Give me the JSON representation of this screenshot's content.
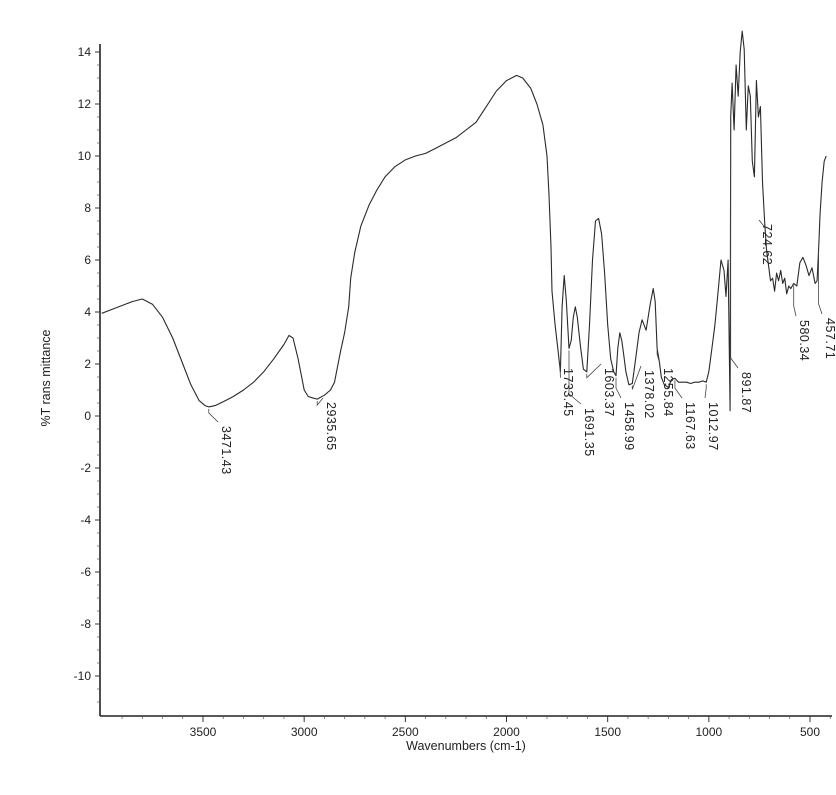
{
  "chart_data": {
    "type": "line",
    "xlabel": "Wavenumbers (cm-1)",
    "ylabel": "%Transmittance",
    "xlim": [
      4000,
      400
    ],
    "ylim": [
      -11.5,
      14.5
    ],
    "x_reversed": true,
    "x_ticks": [
      3500,
      3000,
      2500,
      2000,
      1500,
      1000,
      500
    ],
    "y_ticks": [
      14,
      12,
      10,
      8,
      6,
      4,
      2,
      0,
      -2,
      -4,
      -6,
      -8,
      -10
    ],
    "grid": false,
    "legend": "none",
    "series": [
      {
        "x": [
          4000,
          3950,
          3900,
          3850,
          3800,
          3750,
          3700,
          3650,
          3600,
          3560,
          3520,
          3490,
          3471.43,
          3440,
          3400,
          3350,
          3300,
          3250,
          3200,
          3150,
          3100,
          3075,
          3055,
          3030,
          3000,
          2980,
          2960,
          2935.65,
          2900,
          2870,
          2850,
          2820,
          2800,
          2780,
          2770,
          2750,
          2720,
          2680,
          2640,
          2600,
          2550,
          2500,
          2450,
          2400,
          2350,
          2300,
          2250,
          2200,
          2150,
          2100,
          2050,
          2000,
          1950,
          1920,
          1880,
          1850,
          1820,
          1800,
          1790,
          1780,
          1775,
          1760,
          1745,
          1733.45,
          1725,
          1715,
          1705,
          1691.35,
          1680,
          1670,
          1660,
          1650,
          1635,
          1620,
          1603.37,
          1590,
          1575,
          1560,
          1545,
          1530,
          1515,
          1500,
          1485,
          1470,
          1458.99,
          1450,
          1440,
          1430,
          1420,
          1410,
          1395,
          1378.02,
          1360,
          1345,
          1330,
          1310,
          1290,
          1275,
          1265,
          1255.84,
          1245,
          1235,
          1220,
          1200,
          1185,
          1167.63,
          1150,
          1130,
          1110,
          1090,
          1070,
          1050,
          1030,
          1012.97,
          1000,
          985,
          970,
          955,
          940,
          925,
          915,
          905,
          895,
          891.87,
          885,
          875,
          865,
          855,
          845,
          835,
          825,
          815,
          805,
          795,
          785,
          775,
          765,
          755,
          745,
          735,
          724.62,
          715,
          705,
          695,
          685,
          675,
          665,
          655,
          645,
          635,
          625,
          615,
          605,
          595,
          580.34,
          565,
          550,
          535,
          520,
          505,
          490,
          475,
          465,
          457.71,
          450,
          440,
          430,
          420
        ],
        "y": [
          3.95,
          4.1,
          4.25,
          4.4,
          4.5,
          4.3,
          3.8,
          3.0,
          2.0,
          1.2,
          0.6,
          0.4,
          0.35,
          0.4,
          0.55,
          0.75,
          1.0,
          1.3,
          1.7,
          2.2,
          2.75,
          3.1,
          3.0,
          2.2,
          1.0,
          0.75,
          0.7,
          0.65,
          0.8,
          1.0,
          1.3,
          2.5,
          3.2,
          4.2,
          5.3,
          6.3,
          7.3,
          8.1,
          8.7,
          9.2,
          9.6,
          9.85,
          10.0,
          10.1,
          10.3,
          10.5,
          10.7,
          11.0,
          11.3,
          11.9,
          12.5,
          12.9,
          13.1,
          13.0,
          12.6,
          12.0,
          11.2,
          10.0,
          8.5,
          6.5,
          4.8,
          3.5,
          2.5,
          1.7,
          4.2,
          5.4,
          4.5,
          2.6,
          2.9,
          3.8,
          4.2,
          3.8,
          2.7,
          1.8,
          1.7,
          3.5,
          6.0,
          7.5,
          7.6,
          7.0,
          5.5,
          3.5,
          2.2,
          1.7,
          1.55,
          2.6,
          3.2,
          2.9,
          2.3,
          1.7,
          1.2,
          1.25,
          2.3,
          3.2,
          3.7,
          3.3,
          4.3,
          4.9,
          4.4,
          2.6,
          2.1,
          1.5,
          1.2,
          1.1,
          1.4,
          1.45,
          1.3,
          1.3,
          1.3,
          1.25,
          1.3,
          1.3,
          1.35,
          1.3,
          1.7,
          2.6,
          3.5,
          4.7,
          6.0,
          5.6,
          4.6,
          6.0,
          0.2,
          11.5,
          12.8,
          11.0,
          13.5,
          12.3,
          14.0,
          14.8,
          14.1,
          11.0,
          12.7,
          12.3,
          9.8,
          9.2,
          12.9,
          11.5,
          11.9,
          9.0,
          7.5,
          6.4,
          5.8,
          5.2,
          5.3,
          4.8,
          5.5,
          5.2,
          5.6,
          5.1,
          5.3,
          4.7,
          5.0,
          4.9,
          5.1,
          5.0,
          5.9,
          6.1,
          5.8,
          5.4,
          5.7,
          5.1,
          5.2,
          6.4,
          7.8,
          9.0,
          9.8,
          10.0
        ]
      }
    ],
    "peak_labels": [
      {
        "wavenumber": 3471.43,
        "text": "3471.43"
      },
      {
        "wavenumber": 2935.65,
        "text": "2935.65"
      },
      {
        "wavenumber": 1733.45,
        "text": "1733.45"
      },
      {
        "wavenumber": 1691.35,
        "text": "1691.35"
      },
      {
        "wavenumber": 1603.37,
        "text": "1603.37"
      },
      {
        "wavenumber": 1458.99,
        "text": "1458.99"
      },
      {
        "wavenumber": 1378.02,
        "text": "1378.02"
      },
      {
        "wavenumber": 1255.84,
        "text": "1255.84"
      },
      {
        "wavenumber": 1167.63,
        "text": "1167.63"
      },
      {
        "wavenumber": 1012.97,
        "text": "1012.97"
      },
      {
        "wavenumber": 891.87,
        "text": "891.87"
      },
      {
        "wavenumber": 724.62,
        "text": "724.62"
      },
      {
        "wavenumber": 580.34,
        "text": "580.34"
      },
      {
        "wavenumber": 457.71,
        "text": "457.71"
      }
    ]
  },
  "labels": {
    "ylabel": "%T rans mittance",
    "xlabel": "Wavenumbers (cm-1)"
  },
  "colors": {
    "line": "#2a2a2a",
    "axis": "#222222",
    "background": "#ffffff"
  }
}
